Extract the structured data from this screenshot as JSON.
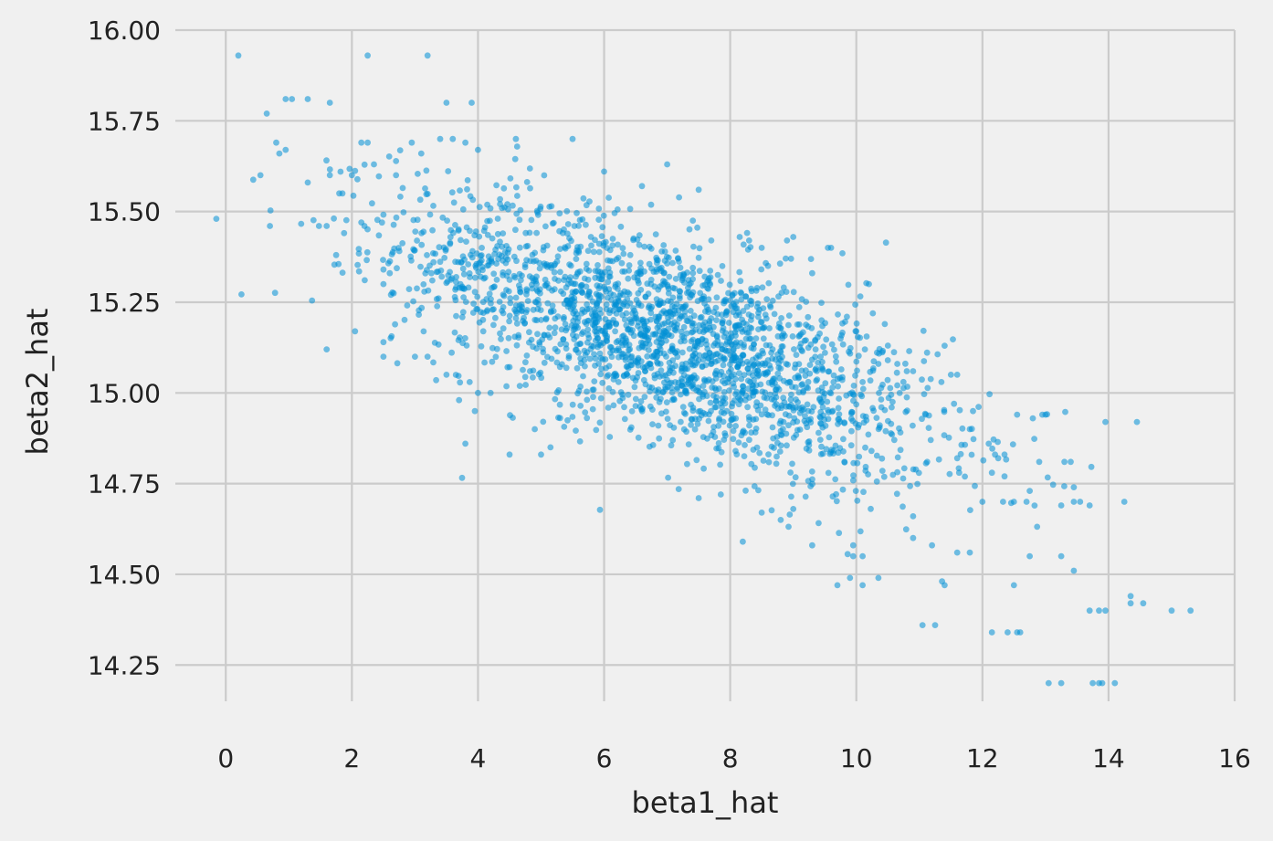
{
  "chart_data": {
    "type": "scatter",
    "title": "",
    "xlabel": "beta1_hat",
    "ylabel": "beta2_hat",
    "xlim": [
      -0.8,
      16.0
    ],
    "ylim": [
      14.15,
      16.0
    ],
    "grid": true,
    "legend": "none",
    "xticks": [
      0,
      2,
      4,
      6,
      8,
      10,
      12,
      14,
      16
    ],
    "xtick_labels": [
      "0",
      "2",
      "4",
      "6",
      "8",
      "10",
      "12",
      "14",
      "16"
    ],
    "yticks": [
      14.25,
      14.5,
      14.75,
      15.0,
      15.25,
      15.5,
      15.75,
      16.0
    ],
    "ytick_labels": [
      "14.25",
      "14.50",
      "14.75",
      "15.00",
      "15.25",
      "15.50",
      "15.75",
      "16.00"
    ],
    "point_color": "#008fd5",
    "point_alpha": 0.55,
    "series": [
      {
        "values_description_omitted": true,
        "points": [
          [
            -0.15,
            15.48
          ],
          [
            0.2,
            15.93
          ],
          [
            2.25,
            15.93
          ],
          [
            3.2,
            15.93
          ],
          [
            0.65,
            15.77
          ],
          [
            0.95,
            15.81
          ],
          [
            1.05,
            15.81
          ],
          [
            1.3,
            15.81
          ],
          [
            1.65,
            15.8
          ],
          [
            3.5,
            15.8
          ],
          [
            3.9,
            15.8
          ],
          [
            0.8,
            15.69
          ],
          [
            0.95,
            15.67
          ],
          [
            0.85,
            15.66
          ],
          [
            0.55,
            15.6
          ],
          [
            0.7,
            15.46
          ],
          [
            1.3,
            15.58
          ],
          [
            1.65,
            15.6
          ],
          [
            1.8,
            15.55
          ],
          [
            1.85,
            15.55
          ],
          [
            2.0,
            15.6
          ],
          [
            2.15,
            15.69
          ],
          [
            2.25,
            15.69
          ],
          [
            2.35,
            15.63
          ],
          [
            1.6,
            15.46
          ],
          [
            1.75,
            15.38
          ],
          [
            2.15,
            15.47
          ],
          [
            2.2,
            15.46
          ],
          [
            2.5,
            15.34
          ],
          [
            2.6,
            15.33
          ],
          [
            2.5,
            15.3
          ],
          [
            2.05,
            15.17
          ],
          [
            1.6,
            15.12
          ],
          [
            2.5,
            15.14
          ],
          [
            2.5,
            15.1
          ],
          [
            2.7,
            15.6
          ],
          [
            2.95,
            15.69
          ],
          [
            3.1,
            15.66
          ],
          [
            3.4,
            15.7
          ],
          [
            3.6,
            15.7
          ],
          [
            3.8,
            15.69
          ],
          [
            4.0,
            15.67
          ],
          [
            4.6,
            15.7
          ],
          [
            5.5,
            15.7
          ],
          [
            6.0,
            15.61
          ],
          [
            7.0,
            15.63
          ],
          [
            7.5,
            15.56
          ],
          [
            6.6,
            15.57
          ],
          [
            3.2,
            15.1
          ],
          [
            3.0,
            15.1
          ],
          [
            3.5,
            15.05
          ],
          [
            3.7,
            14.98
          ],
          [
            3.8,
            14.86
          ],
          [
            3.95,
            14.95
          ],
          [
            4.0,
            15.0
          ],
          [
            4.5,
            14.83
          ],
          [
            5.0,
            14.83
          ],
          [
            5.15,
            14.85
          ],
          [
            4.2,
            15.0
          ],
          [
            4.9,
            14.9
          ],
          [
            7.5,
            14.71
          ],
          [
            7.85,
            14.72
          ],
          [
            8.2,
            14.59
          ],
          [
            8.5,
            14.67
          ],
          [
            8.8,
            14.65
          ],
          [
            9.0,
            14.68
          ],
          [
            9.3,
            14.58
          ],
          [
            9.7,
            14.47
          ],
          [
            9.9,
            14.49
          ],
          [
            10.1,
            14.47
          ],
          [
            10.35,
            14.49
          ],
          [
            9.95,
            14.55
          ],
          [
            10.1,
            14.55
          ],
          [
            9.95,
            14.58
          ],
          [
            10.9,
            14.66
          ],
          [
            10.9,
            14.6
          ],
          [
            11.2,
            14.58
          ],
          [
            11.05,
            14.36
          ],
          [
            11.25,
            14.36
          ],
          [
            11.4,
            14.47
          ],
          [
            11.6,
            14.56
          ],
          [
            11.8,
            14.56
          ],
          [
            12.15,
            14.34
          ],
          [
            12.4,
            14.34
          ],
          [
            12.55,
            14.34
          ],
          [
            12.6,
            14.34
          ],
          [
            12.5,
            14.47
          ],
          [
            12.75,
            14.55
          ],
          [
            13.25,
            14.55
          ],
          [
            13.45,
            14.51
          ],
          [
            13.05,
            14.2
          ],
          [
            13.25,
            14.2
          ],
          [
            13.75,
            14.2
          ],
          [
            13.85,
            14.2
          ],
          [
            13.9,
            14.2
          ],
          [
            14.1,
            14.2
          ],
          [
            13.7,
            14.4
          ],
          [
            13.85,
            14.4
          ],
          [
            13.95,
            14.4
          ],
          [
            14.35,
            14.42
          ],
          [
            14.35,
            14.44
          ],
          [
            14.55,
            14.42
          ],
          [
            15.0,
            14.4
          ],
          [
            15.3,
            14.4
          ],
          [
            14.25,
            14.7
          ],
          [
            13.45,
            14.7
          ],
          [
            13.55,
            14.7
          ],
          [
            13.7,
            14.69
          ],
          [
            13.25,
            14.69
          ],
          [
            13.45,
            14.74
          ],
          [
            13.3,
            14.81
          ],
          [
            13.4,
            14.81
          ],
          [
            12.9,
            14.81
          ],
          [
            12.95,
            14.94
          ],
          [
            13.0,
            14.94
          ],
          [
            12.8,
            14.93
          ],
          [
            12.55,
            14.94
          ],
          [
            13.95,
            14.92
          ],
          [
            14.45,
            14.92
          ],
          [
            12.2,
            14.83
          ],
          [
            12.35,
            14.83
          ],
          [
            12.35,
            14.77
          ],
          [
            12.7,
            14.7
          ],
          [
            12.75,
            14.73
          ],
          [
            11.1,
            14.94
          ],
          [
            11.4,
            15.13
          ],
          [
            11.5,
            15.05
          ],
          [
            11.6,
            15.05
          ],
          [
            11.55,
            14.97
          ],
          [
            10.2,
            15.3
          ],
          [
            10.1,
            15.03
          ],
          [
            10.35,
            15.08
          ],
          [
            10.5,
            15.09
          ],
          [
            10.65,
            15.08
          ],
          [
            10.8,
            15.06
          ],
          [
            10.9,
            15.06
          ],
          [
            11.35,
            15.03
          ],
          [
            11.6,
            14.82
          ],
          [
            11.8,
            14.9
          ],
          [
            11.85,
            14.95
          ],
          [
            12.1,
            14.86
          ],
          [
            12.15,
            14.78
          ],
          [
            12.25,
            14.82
          ],
          [
            12.0,
            14.7
          ],
          [
            12.5,
            14.7
          ],
          [
            9.6,
            15.4
          ],
          [
            9.55,
            15.4
          ],
          [
            9.3,
            15.33
          ],
          [
            9.0,
            15.43
          ],
          [
            8.9,
            15.42
          ],
          [
            8.5,
            15.4
          ],
          [
            8.15,
            15.43
          ],
          [
            8.3,
            15.42
          ],
          [
            7.7,
            15.42
          ],
          [
            8.6,
            15.35
          ],
          [
            9.45,
            15.2
          ],
          [
            9.85,
            15.21
          ],
          [
            10.0,
            15.17
          ],
          [
            9.75,
            15.15
          ]
        ]
      }
    ],
    "cluster": {
      "n": 2300,
      "mean_x": 7.0,
      "mean_y": 15.15,
      "sd_x": 2.1,
      "sd_y": 0.19,
      "correlation": -0.68
    }
  }
}
